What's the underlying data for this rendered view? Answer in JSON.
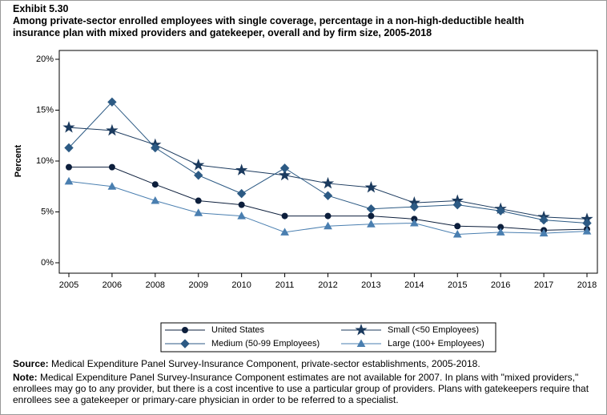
{
  "chart_data": {
    "type": "line",
    "exhibit": "Exhibit 5.30",
    "title": "Among private-sector enrolled employees with single coverage, percentage in a non-high-deductible health insurance plan with mixed providers and gatekeeper, overall and by firm size, 2005-2018",
    "ylabel": "Percent",
    "categories": [
      "2005",
      "2006",
      "2008",
      "2009",
      "2010",
      "2011",
      "2012",
      "2013",
      "2014",
      "2015",
      "2016",
      "2017",
      "2018"
    ],
    "ylim": [
      0,
      20
    ],
    "yticks": [
      {
        "value": 0,
        "label": "0%"
      },
      {
        "value": 5,
        "label": "5%"
      },
      {
        "value": 10,
        "label": "10%"
      },
      {
        "value": 15,
        "label": "15%"
      },
      {
        "value": 20,
        "label": "20%"
      }
    ],
    "series": [
      {
        "name": "United States",
        "color": "#0d1f3c",
        "marker": "circle",
        "values": [
          9.4,
          9.4,
          7.7,
          6.1,
          5.7,
          4.6,
          4.6,
          4.6,
          4.3,
          3.6,
          3.5,
          3.2,
          3.3
        ]
      },
      {
        "name": "Small (<50 Employees)",
        "color": "#1b3a5e",
        "marker": "star",
        "values": [
          13.3,
          13.0,
          11.6,
          9.6,
          9.1,
          8.6,
          7.8,
          7.4,
          5.9,
          6.1,
          5.3,
          4.5,
          4.3
        ]
      },
      {
        "name": "Medium (50-99 Employees)",
        "color": "#2c5a84",
        "marker": "diamond",
        "values": [
          11.3,
          15.8,
          11.3,
          8.6,
          6.8,
          9.3,
          6.6,
          5.3,
          5.5,
          5.7,
          5.1,
          4.2,
          3.9
        ]
      },
      {
        "name": "Large (100+ Employees)",
        "color": "#4a7fb0",
        "marker": "triangle",
        "values": [
          8.0,
          7.5,
          6.1,
          4.9,
          4.6,
          3.0,
          3.6,
          3.8,
          3.9,
          2.8,
          3.0,
          2.9,
          3.1
        ]
      }
    ],
    "source": {
      "label": "Source:",
      "text": "Medical Expenditure Panel Survey-Insurance Component, private-sector establishments, 2005-2018."
    },
    "note": {
      "label": "Note:",
      "text": "Medical Expenditure Panel Survey-Insurance Component estimates are not available for 2007. In plans with \"mixed providers,\" enrollees may go to any provider, but there is a cost incentive to use a particular group of providers. Plans with gatekeepers require that enrollees see a gatekeeper or primary-care physician in order to be referred to a specialist."
    }
  }
}
